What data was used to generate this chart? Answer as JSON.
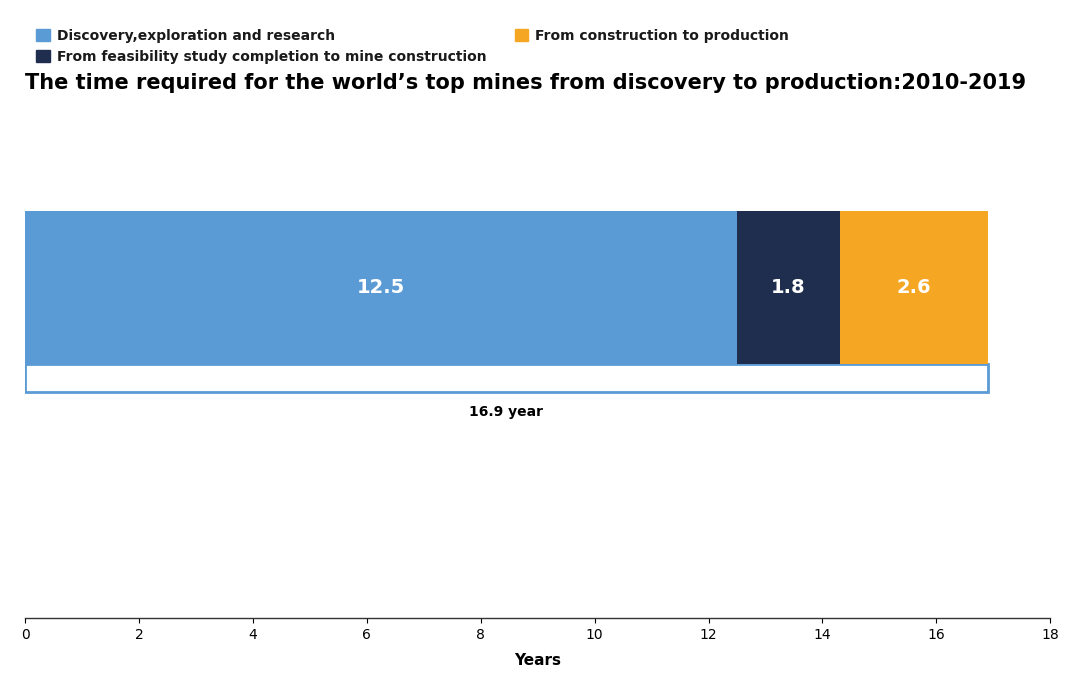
{
  "title": "The time required for the world’s top mines from discovery to production:2010-2019",
  "segments": [
    12.5,
    1.8,
    2.6
  ],
  "segment_colors": [
    "#5b9bd5",
    "#1f2d4e",
    "#f5a623"
  ],
  "segment_labels": [
    "12.5",
    "1.8",
    "2.6"
  ],
  "legend_labels": [
    "Discovery,exploration and research",
    "From feasibility study completion to mine construction",
    "From construction to production"
  ],
  "legend_colors": [
    "#5b9bd5",
    "#1f2d4e",
    "#f5a623"
  ],
  "total_label": "16.9 year",
  "xlabel": "Years",
  "xlim": [
    0,
    18
  ],
  "xticks": [
    0,
    2,
    4,
    6,
    8,
    10,
    12,
    14,
    16,
    18
  ],
  "background_color": "#ffffff",
  "title_fontsize": 15,
  "tick_fontsize": 11,
  "legend_fontsize": 10,
  "segment_label_fontsize": 14,
  "total_label_fontsize": 10,
  "xlabel_fontsize": 11,
  "bar_color_1": "#5b9bd5",
  "bar_color_2": "#1f2d4e",
  "bar_color_3": "#f5a623",
  "total_border_color": "#5b9bd5"
}
